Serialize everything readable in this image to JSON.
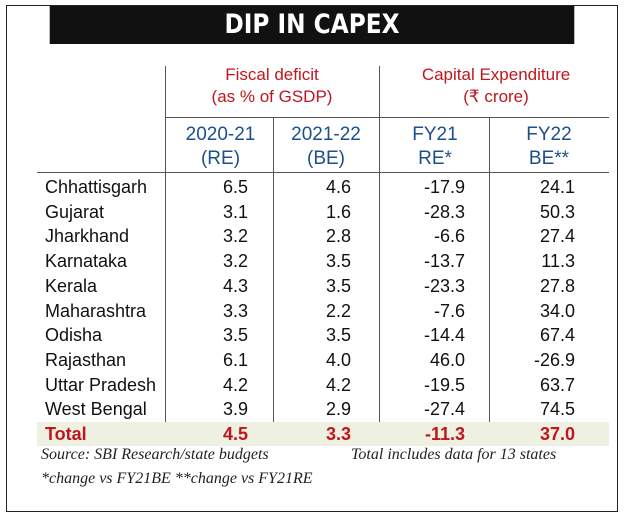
{
  "title": "DIP IN CAPEX",
  "groups": {
    "fiscal_deficit": {
      "line1": "Fiscal deficit",
      "line2": "(as % of GSDP)"
    },
    "capex": {
      "line1": "Capital Expenditure",
      "line2": "(₹ crore)"
    }
  },
  "columns": [
    {
      "line1": "2020-21",
      "line2": "(RE)"
    },
    {
      "line1": "2021-22",
      "line2": "(BE)"
    },
    {
      "line1": "FY21",
      "line2": "RE*"
    },
    {
      "line1": "FY22",
      "line2": "BE**"
    }
  ],
  "rows": [
    {
      "state": "Chhattisgarh",
      "values": [
        "6.5",
        "4.6",
        "-17.9",
        "24.1"
      ]
    },
    {
      "state": "Gujarat",
      "values": [
        "3.1",
        "1.6",
        "-28.3",
        "50.3"
      ]
    },
    {
      "state": "Jharkhand",
      "values": [
        "3.2",
        "2.8",
        "-6.6",
        "27.4"
      ]
    },
    {
      "state": "Karnataka",
      "values": [
        "3.2",
        "3.5",
        "-13.7",
        "11.3"
      ]
    },
    {
      "state": "Kerala",
      "values": [
        "4.3",
        "3.5",
        "-23.3",
        "27.8"
      ]
    },
    {
      "state": "Maharashtra",
      "values": [
        "3.3",
        "2.2",
        "-7.6",
        "34.0"
      ]
    },
    {
      "state": "Odisha",
      "values": [
        "3.5",
        "3.5",
        "-14.4",
        "67.4"
      ]
    },
    {
      "state": "Rajasthan",
      "values": [
        "6.1",
        "4.0",
        "46.0",
        "-26.9"
      ]
    },
    {
      "state": "Uttar Pradesh",
      "values": [
        "4.2",
        "4.2",
        "-19.5",
        "63.7"
      ]
    },
    {
      "state": "West Bengal",
      "values": [
        "3.9",
        "2.9",
        "-27.4",
        "74.5"
      ]
    }
  ],
  "total": {
    "state": "Total",
    "values": [
      "4.5",
      "3.3",
      "-11.3",
      "37.0"
    ]
  },
  "footer": {
    "source": "Source: SBI Research/state budgets",
    "coverage": "Total includes data for 13 states",
    "note": "*change vs FY21BE **change vs FY21RE"
  },
  "colors": {
    "title_bg": "#111111",
    "accent_red": "#c0161d",
    "accent_blue": "#1d4f8a",
    "total_bg": "#eef0e2"
  }
}
